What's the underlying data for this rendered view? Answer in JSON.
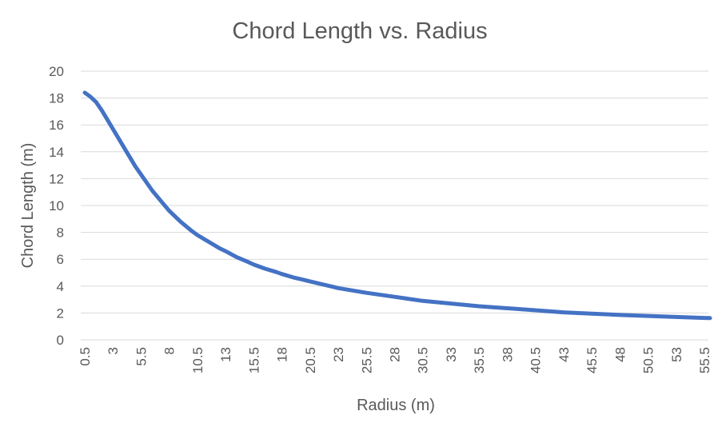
{
  "chart_data": {
    "type": "line",
    "title": "Chord Length vs. Radius",
    "xlabel": "Radius (m)",
    "ylabel": "Chord Length (m)",
    "ylim": [
      0,
      20
    ],
    "yticks": [
      "0",
      "2",
      "4",
      "6",
      "8",
      "10",
      "12",
      "14",
      "16",
      "18",
      "20"
    ],
    "xticks": [
      "0.5",
      "3",
      "5.5",
      "8",
      "10.5",
      "13",
      "15.5",
      "18",
      "20.5",
      "23",
      "25.5",
      "28",
      "30.5",
      "33",
      "35.5",
      "38",
      "40.5",
      "43",
      "45.5",
      "48",
      "50.5",
      "53",
      "55.5"
    ],
    "grid": true,
    "line_color": "#4472c4",
    "series": [
      {
        "x": [
          0.5,
          1.0,
          1.5,
          2.0,
          3.0,
          4.0,
          5.0,
          5.5,
          6.5,
          7.5,
          8.0,
          9.0,
          10.0,
          10.5,
          11.5,
          12.5,
          13.0,
          14.0,
          15.0,
          15.5,
          16.5,
          17.5,
          18.0,
          19.0,
          20.0,
          20.5,
          21.5,
          22.5,
          23.0,
          25.5,
          28.0,
          30.5,
          33.0,
          35.5,
          38.0,
          40.5,
          43.0,
          45.5,
          48.0,
          50.5,
          53.0,
          55.5,
          56.0
        ],
        "y": [
          18.4,
          18.1,
          17.7,
          17.1,
          15.7,
          14.3,
          12.9,
          12.3,
          11.1,
          10.1,
          9.6,
          8.8,
          8.1,
          7.8,
          7.3,
          6.8,
          6.6,
          6.15,
          5.8,
          5.6,
          5.3,
          5.05,
          4.9,
          4.65,
          4.45,
          4.35,
          4.15,
          3.95,
          3.85,
          3.5,
          3.2,
          2.9,
          2.7,
          2.5,
          2.35,
          2.2,
          2.05,
          1.95,
          1.85,
          1.78,
          1.7,
          1.63,
          1.62
        ]
      }
    ]
  }
}
